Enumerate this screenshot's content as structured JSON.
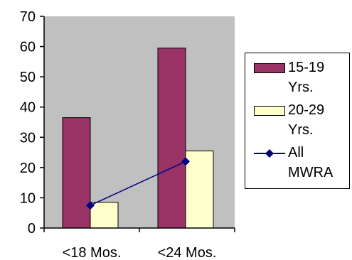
{
  "chart_data": {
    "type": "bar",
    "categories": [
      "<18 Mos.",
      "<24 Mos."
    ],
    "series": [
      {
        "name": "15-19 Yrs.",
        "kind": "bar",
        "color": "#993366",
        "values": [
          36.5,
          59.5
        ]
      },
      {
        "name": "20-29 Yrs.",
        "kind": "bar",
        "color": "#FFFFCC",
        "values": [
          8.5,
          25.5
        ]
      },
      {
        "name": "All MWRA",
        "kind": "line",
        "color": "#000080",
        "values": [
          7.5,
          22
        ]
      }
    ],
    "yticks": [
      0,
      10,
      20,
      30,
      40,
      50,
      60,
      70
    ],
    "ylim": [
      0,
      70
    ],
    "plot_background": "#C0C0C0",
    "grid": false,
    "legend_position": "right",
    "title": "",
    "xlabel": "",
    "ylabel": ""
  },
  "legend": {
    "items": [
      {
        "line1": "15-19",
        "line2": "Yrs."
      },
      {
        "line1": "20-29",
        "line2": "Yrs."
      },
      {
        "line1": "All",
        "line2": "MWRA"
      }
    ]
  }
}
